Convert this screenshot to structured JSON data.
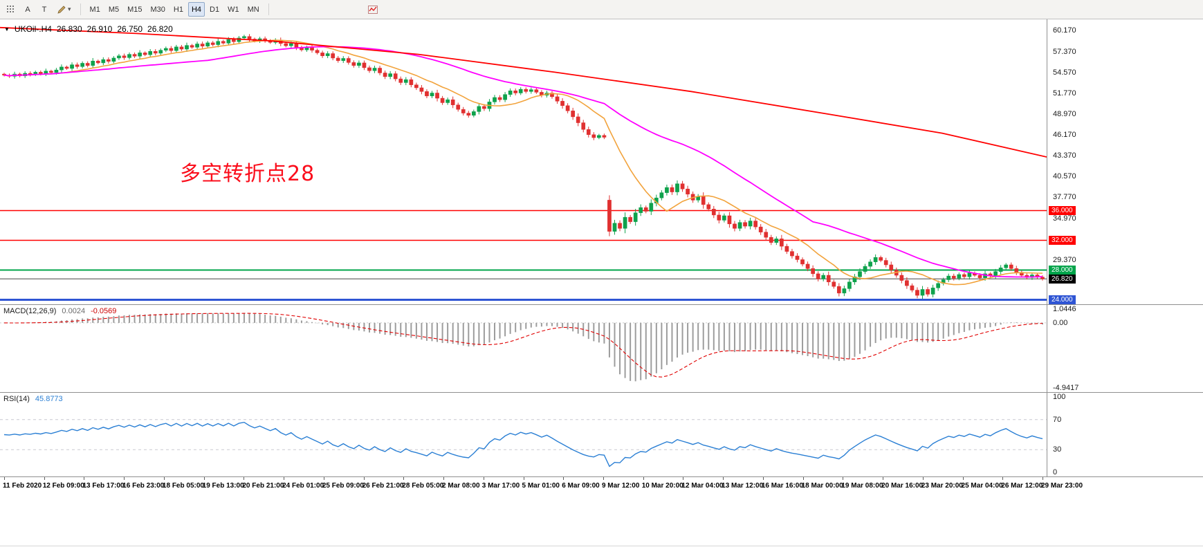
{
  "toolbar": {
    "cursor_label": "A",
    "text_label": "T",
    "timeframes": [
      "M1",
      "M5",
      "M15",
      "M30",
      "H1",
      "H4",
      "D1",
      "W1",
      "MN"
    ],
    "active_timeframe": "H4"
  },
  "symbol_bar": {
    "symbol": "UKOil-.H4",
    "open": "26.830",
    "high": "26.910",
    "low": "26.750",
    "close": "26.820"
  },
  "annotation": {
    "text": "多空转折点28",
    "color": "#fb0d1b"
  },
  "chart_data": {
    "type": "candlestick",
    "symbol": "UKOil-",
    "timeframe": "H4",
    "price_axis": {
      "min": 23.4,
      "max": 61.7,
      "tick_labels": [
        "60.170",
        "57.370",
        "54.570",
        "51.770",
        "48.970",
        "46.170",
        "43.370",
        "40.570",
        "37.770",
        "34.970",
        "29.370"
      ],
      "tick_values": [
        60.17,
        57.37,
        54.57,
        51.77,
        48.97,
        46.17,
        43.37,
        40.57,
        37.77,
        34.97,
        29.37
      ]
    },
    "candles": {
      "up_color": "#0fa24c",
      "down_color": "#e03030",
      "open_overrides": {
        "0": 54.35,
        "116": 37.4
      },
      "closes": [
        54.2,
        54.05,
        54.35,
        54.1,
        54.45,
        54.3,
        54.6,
        54.4,
        54.75,
        54.55,
        54.9,
        55.3,
        55.1,
        55.6,
        55.35,
        55.8,
        55.5,
        56.1,
        55.85,
        56.3,
        56.05,
        56.5,
        56.8,
        56.55,
        57.0,
        56.75,
        57.2,
        56.95,
        57.4,
        57.15,
        57.55,
        57.8,
        57.5,
        58.0,
        57.7,
        58.2,
        57.95,
        58.4,
        58.1,
        58.55,
        58.3,
        58.75,
        58.5,
        59.0,
        58.7,
        59.2,
        59.4,
        59.05,
        58.8,
        59.1,
        58.85,
        58.6,
        58.9,
        58.45,
        58.15,
        58.45,
        57.95,
        57.6,
        57.9,
        57.55,
        57.2,
        56.8,
        57.1,
        56.5,
        56.15,
        56.45,
        55.9,
        55.5,
        55.85,
        55.2,
        54.8,
        55.15,
        54.5,
        54.0,
        54.4,
        53.7,
        53.2,
        53.6,
        52.9,
        52.5,
        52.0,
        51.4,
        51.8,
        51.1,
        50.5,
        50.9,
        50.2,
        49.6,
        49.1,
        48.8,
        49.3,
        50.0,
        49.7,
        50.6,
        51.2,
        50.9,
        51.6,
        52.1,
        51.8,
        52.3,
        52.0,
        52.25,
        51.9,
        51.5,
        51.8,
        51.3,
        50.7,
        50.1,
        49.4,
        48.6,
        47.8,
        46.9,
        46.2,
        45.8,
        46.1,
        45.85,
        33.2,
        34.3,
        33.6,
        35.1,
        34.5,
        35.7,
        36.4,
        35.9,
        37.0,
        37.7,
        38.4,
        39.1,
        38.5,
        39.6,
        38.9,
        38.2,
        37.4,
        37.9,
        36.8,
        36.2,
        35.4,
        34.7,
        35.3,
        34.2,
        33.6,
        34.4,
        33.9,
        34.6,
        33.8,
        33.1,
        32.4,
        31.7,
        32.2,
        31.2,
        30.5,
        29.9,
        29.4,
        28.8,
        28.2,
        27.5,
        26.8,
        27.3,
        26.4,
        25.8,
        24.9,
        25.5,
        26.4,
        27.1,
        27.8,
        28.5,
        29.1,
        29.7,
        29.3,
        28.7,
        28.0,
        27.3,
        26.6,
        25.9,
        25.3,
        24.6,
        25.4,
        24.75,
        25.6,
        26.2,
        26.7,
        27.2,
        26.9,
        27.4,
        27.1,
        27.6,
        27.3,
        26.95,
        27.5,
        27.2,
        27.8,
        28.3,
        28.7,
        28.2,
        27.7,
        27.3,
        27.0,
        27.35,
        27.05,
        26.82
      ]
    },
    "overlays": {
      "ma_fast": {
        "period": 12,
        "color": "#f2a33c"
      },
      "ma_slow": {
        "period": 40,
        "color": "#ff00ff"
      },
      "trend_line": {
        "color": "#ff0000",
        "points": [
          [
            0,
            60.6
          ],
          [
            0.13,
            59.8
          ],
          [
            0.26,
            58.8
          ],
          [
            0.4,
            57.0
          ],
          [
            0.53,
            54.6
          ],
          [
            0.66,
            52.0
          ],
          [
            0.79,
            49.0
          ],
          [
            0.9,
            46.4
          ],
          [
            1.0,
            43.2
          ]
        ]
      }
    },
    "hlines": [
      {
        "value": 36.0,
        "label": "36.000",
        "color": "#ff0000",
        "width": 1.5
      },
      {
        "value": 32.0,
        "label": "32.000",
        "color": "#ff0000",
        "width": 1.5
      },
      {
        "value": 28.0,
        "label": "28.000",
        "color": "#00a44a",
        "width": 2
      },
      {
        "value": 24.0,
        "label": "24.000",
        "color": "#2f55d4",
        "width": 3
      }
    ],
    "current_price": {
      "value": 26.82,
      "label": "26.820",
      "line_color": "#444444",
      "badge_color": "#000000"
    },
    "indicators": {
      "macd": {
        "label": "MACD(12,26,9)",
        "value_main": "0.0024",
        "value_signal": "-0.0569",
        "fast": 12,
        "slow": 26,
        "signal_period": 9,
        "histogram_color": "#9c9c9c",
        "signal_color": "#e00000",
        "axis": {
          "min": -4.9417,
          "max": 1.0446,
          "tick_labels": [
            "1.0446",
            "0.00",
            "-4.9417"
          ],
          "tick_values": [
            1.0446,
            0,
            -4.9417
          ]
        }
      },
      "rsi": {
        "label": "RSI(14)",
        "value": "45.8773",
        "period": 14,
        "color": "#2a7fd4",
        "levels": [
          70,
          30
        ],
        "axis": {
          "min": 0,
          "max": 100,
          "tick_labels": [
            "100",
            "70",
            "30",
            "0"
          ],
          "tick_values": [
            100,
            70,
            30,
            0
          ]
        }
      }
    },
    "time_labels": [
      "11 Feb 2020",
      "12 Feb 09:00",
      "13 Feb 17:00",
      "16 Feb 23:00",
      "18 Feb 05:00",
      "19 Feb 13:00",
      "20 Feb 21:00",
      "24 Feb 01:00",
      "25 Feb 09:00",
      "26 Feb 21:00",
      "28 Feb 05:00",
      "2 Mar 08:00",
      "3 Mar 17:00",
      "5 Mar 01:00",
      "6 Mar 09:00",
      "9 Mar 12:00",
      "10 Mar 20:00",
      "12 Mar 04:00",
      "13 Mar 12:00",
      "16 Mar 16:00",
      "18 Mar 00:00",
      "19 Mar 08:00",
      "20 Mar 16:00",
      "23 Mar 20:00",
      "25 Mar 04:00",
      "26 Mar 12:00",
      "29 Mar 23:00"
    ]
  }
}
